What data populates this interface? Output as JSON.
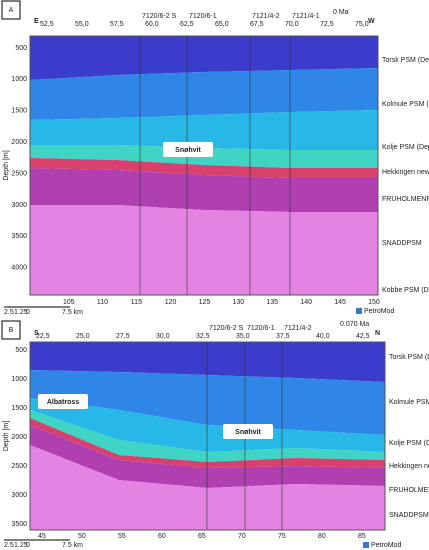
{
  "panel_a": {
    "letter": "A",
    "left": "E",
    "right": "W",
    "age": "0 Ma",
    "top_ticks": [
      "52,5",
      "55,0",
      "57,5",
      "60,0",
      "62,5",
      "65,0",
      "67,5",
      "70,0",
      "72,5",
      "75,0"
    ],
    "wells": [
      "7120/6-2 S",
      "7120/6-1",
      "7121/4-2",
      "7121/4-1"
    ],
    "depth_label": "Depth [m]",
    "depth_ticks": [
      "500",
      "1000",
      "1500",
      "2000",
      "2500",
      "3000",
      "3500",
      "4000"
    ],
    "layers": [
      "Torsk PSM (Dep",
      "Kolmule PSM (D",
      "Kolje PSM (Dep",
      "Hekkingen new",
      "FRUHOLMENPS",
      "SNADDPSM",
      "Kobbe PSM (De"
    ],
    "fields": [
      "Snøhvit"
    ],
    "bottom_ticks": [
      "105",
      "110",
      "115",
      "120",
      "125",
      "130",
      "135",
      "140",
      "145",
      "150"
    ],
    "scale": [
      "2.5",
      "1.25",
      "0",
      "7.5 km"
    ],
    "logo": "PetroMod"
  },
  "panel_b": {
    "letter": "B",
    "left": "S",
    "right": "N",
    "age": "0.070 Ma",
    "top_ticks": [
      "22,5",
      "25,0",
      "27,5",
      "30,0",
      "32,5",
      "35,0",
      "37,5",
      "40,0",
      "42,5"
    ],
    "wells": [
      "7120/6-2 S",
      "7120/6-1",
      "7121/4-2"
    ],
    "depth_label": "Depth [m]",
    "depth_ticks": [
      "500",
      "1000",
      "1500",
      "2000",
      "2500",
      "3000",
      "3500"
    ],
    "layers": [
      "Torsk PSM (Dep",
      "Kolmule PSM (D",
      "Kolje PSM (Dep",
      "Hekkingen new",
      "FRUHOLMENPS",
      "SNADDPSM"
    ],
    "fields": [
      "Albatross",
      "Snøhvit"
    ],
    "bottom_ticks": [
      "45",
      "50",
      "55",
      "60",
      "65",
      "70",
      "75",
      "80",
      "85"
    ],
    "scale": [
      "2.5",
      "1.25",
      "0",
      "7.5 km"
    ],
    "logo": "PetroMod"
  }
}
